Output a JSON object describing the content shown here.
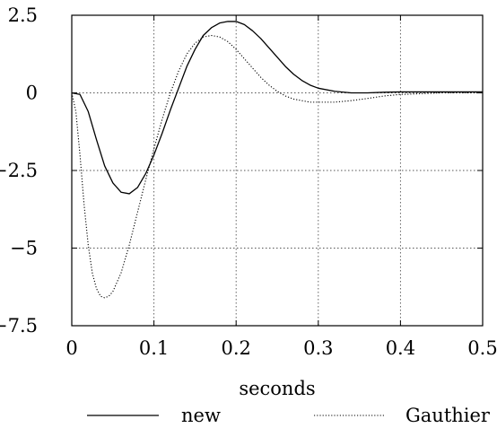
{
  "chart_data": {
    "type": "line",
    "title": "",
    "xlabel": "seconds",
    "ylabel": "",
    "xlim": [
      0,
      0.5
    ],
    "ylim": [
      -7.5,
      2.5
    ],
    "xticks": [
      "0",
      "0.1",
      "0.2",
      "0.3",
      "0.4",
      "0.5"
    ],
    "yticks": [
      "2.5",
      "0",
      "−2.5",
      "−5",
      "−7.5"
    ],
    "grid": true,
    "legend_position": "bottom",
    "series": [
      {
        "name": "new",
        "style": "solid",
        "color": "#000000",
        "x": [
          0,
          0.01,
          0.02,
          0.03,
          0.04,
          0.05,
          0.06,
          0.07,
          0.08,
          0.09,
          0.1,
          0.11,
          0.12,
          0.13,
          0.14,
          0.15,
          0.16,
          0.17,
          0.18,
          0.19,
          0.2,
          0.21,
          0.22,
          0.23,
          0.24,
          0.25,
          0.26,
          0.27,
          0.28,
          0.29,
          0.3,
          0.32,
          0.34,
          0.36,
          0.38,
          0.4,
          0.45,
          0.5
        ],
        "y": [
          0,
          -0.05,
          -0.6,
          -1.5,
          -2.35,
          -2.9,
          -3.2,
          -3.25,
          -3.05,
          -2.6,
          -2.0,
          -1.3,
          -0.55,
          0.15,
          0.85,
          1.4,
          1.85,
          2.1,
          2.25,
          2.3,
          2.3,
          2.2,
          2.0,
          1.75,
          1.45,
          1.15,
          0.85,
          0.6,
          0.4,
          0.25,
          0.15,
          0.05,
          0.0,
          0.0,
          0.02,
          0.03,
          0.03,
          0.03
        ]
      },
      {
        "name": "Gauthier",
        "style": "dotted",
        "color": "#000000",
        "x": [
          0,
          0.005,
          0.01,
          0.015,
          0.02,
          0.025,
          0.03,
          0.035,
          0.04,
          0.045,
          0.05,
          0.06,
          0.07,
          0.08,
          0.09,
          0.1,
          0.11,
          0.12,
          0.13,
          0.14,
          0.15,
          0.16,
          0.17,
          0.18,
          0.19,
          0.2,
          0.21,
          0.22,
          0.23,
          0.24,
          0.25,
          0.26,
          0.27,
          0.28,
          0.29,
          0.3,
          0.32,
          0.34,
          0.36,
          0.38,
          0.4,
          0.45,
          0.5
        ],
        "y": [
          0,
          -0.6,
          -2.0,
          -3.6,
          -4.9,
          -5.8,
          -6.3,
          -6.55,
          -6.6,
          -6.55,
          -6.4,
          -5.8,
          -4.9,
          -3.85,
          -2.8,
          -1.8,
          -0.85,
          0.0,
          0.7,
          1.25,
          1.6,
          1.8,
          1.85,
          1.8,
          1.65,
          1.4,
          1.1,
          0.8,
          0.5,
          0.25,
          0.05,
          -0.1,
          -0.2,
          -0.25,
          -0.3,
          -0.3,
          -0.3,
          -0.25,
          -0.18,
          -0.1,
          -0.05,
          0.0,
          0.0
        ]
      }
    ]
  }
}
